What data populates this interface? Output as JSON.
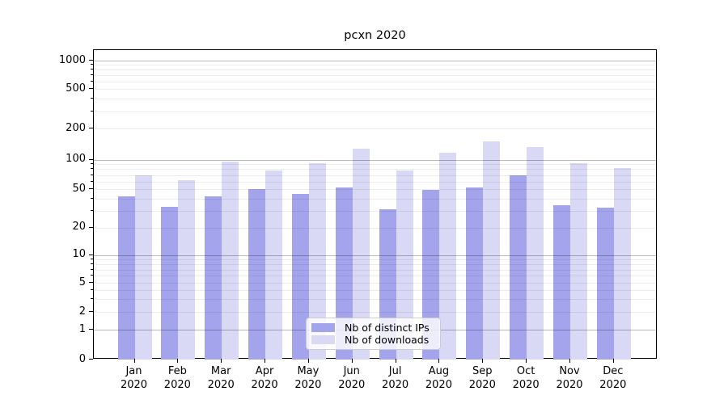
{
  "figure": {
    "title": "pcxn 2020"
  },
  "chart_data": {
    "type": "bar",
    "title": "pcxn 2020",
    "x_months": [
      "Jan",
      "Feb",
      "Mar",
      "Apr",
      "May",
      "Jun",
      "Jul",
      "Aug",
      "Sep",
      "Oct",
      "Nov",
      "Dec"
    ],
    "x_year": "2020",
    "series": [
      {
        "name": "Nb of distinct IPs",
        "color": "#a4a4ed",
        "values": [
          42,
          33,
          42,
          50,
          45,
          52,
          31,
          49,
          52,
          70,
          34,
          32
        ]
      },
      {
        "name": "Nb of downloads",
        "color": "#d9d9f6",
        "values": [
          70,
          62,
          95,
          78,
          92,
          128,
          78,
          117,
          150,
          132,
          93,
          83
        ]
      }
    ],
    "yscale": "symlog",
    "ylim": [
      0,
      1300
    ],
    "yticks": [
      0,
      1,
      2,
      5,
      10,
      20,
      50,
      100,
      200,
      500,
      1000
    ],
    "grid": true,
    "legend_position": "lower center",
    "legend_entries": [
      "Nb of distinct IPs",
      "Nb of downloads"
    ]
  },
  "colors": {
    "bar_distinct_ips": "#a4a4ed",
    "bar_downloads": "#d9d9f6",
    "grid_minor": "#ececec",
    "grid_major": "#bababa",
    "spine": "#000000",
    "background": "#ffffff"
  }
}
